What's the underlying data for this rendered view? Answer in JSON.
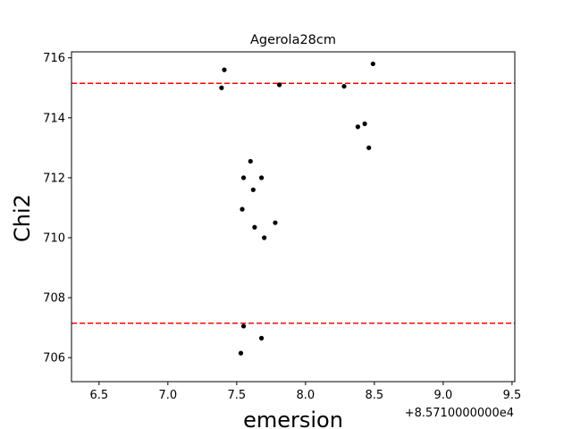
{
  "chart_data": {
    "type": "scatter",
    "title": "Agerola28cm",
    "xlabel": "emersion",
    "ylabel": "Chi2",
    "x_offset_label": "+8.5710000000e4",
    "xlim": [
      6.3,
      9.52
    ],
    "ylim": [
      705.2,
      716.2
    ],
    "xticks": [
      6.5,
      7.0,
      7.5,
      8.0,
      8.5,
      9.0,
      9.5
    ],
    "xtick_labels": [
      "6.5",
      "7.0",
      "7.5",
      "8.0",
      "8.5",
      "9.0",
      "9.5"
    ],
    "yticks": [
      706,
      708,
      710,
      712,
      714,
      716
    ],
    "ytick_labels": [
      "706",
      "708",
      "710",
      "712",
      "714",
      "716"
    ],
    "grid": false,
    "point_color": "#000000",
    "threshold_color": "#ff0000",
    "thresholds": [
      715.15,
      707.15
    ],
    "series": [
      {
        "name": "points",
        "x": [
          7.39,
          7.41,
          7.81,
          8.28,
          8.49,
          8.38,
          8.43,
          8.46,
          7.6,
          7.55,
          7.68,
          7.62,
          7.54,
          7.63,
          7.78,
          7.7,
          7.55,
          7.68,
          7.53
        ],
        "y": [
          715.0,
          715.6,
          715.1,
          715.05,
          715.8,
          713.7,
          713.8,
          713.0,
          712.55,
          712.0,
          712.0,
          711.6,
          710.95,
          710.35,
          710.5,
          710.0,
          707.05,
          706.65,
          706.15
        ]
      }
    ]
  }
}
